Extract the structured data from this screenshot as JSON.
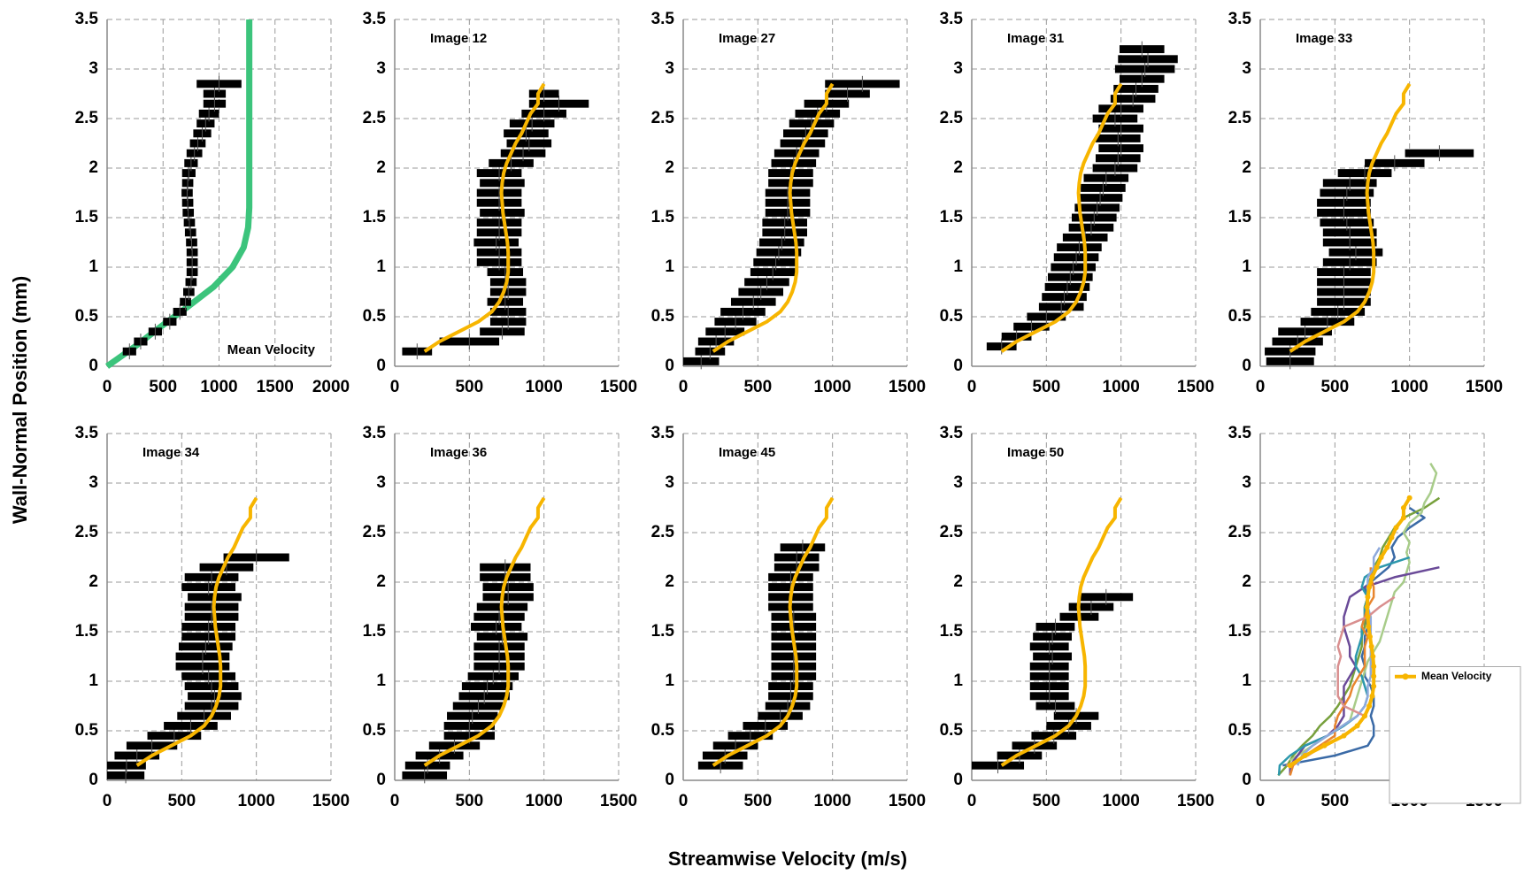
{
  "axis_titles": {
    "y": "Wall-Normal Position (mm)",
    "x": "Streamwise Velocity (m/s)"
  },
  "chart_data": [
    {
      "type": "errorbar",
      "title": "Mean Velocity",
      "xlim": [
        0,
        2000
      ],
      "xticks": [
        0,
        500,
        1000,
        1500,
        2000
      ],
      "ylim": [
        0,
        3.5
      ],
      "yticks": [
        0,
        0.5,
        1,
        1.5,
        2,
        2.5,
        3,
        3.5
      ],
      "grid": true,
      "bar_color": "#000000",
      "color": "#f7b500",
      "y": [
        0.15,
        0.25,
        0.35,
        0.45,
        0.55,
        0.65,
        0.75,
        0.85,
        0.95,
        1.05,
        1.15,
        1.25,
        1.35,
        1.45,
        1.55,
        1.65,
        1.75,
        1.85,
        1.95,
        2.05,
        2.15,
        2.25,
        2.35,
        2.45,
        2.55,
        2.65,
        2.75,
        2.85
      ],
      "x": [
        200,
        300,
        430,
        560,
        650,
        700,
        730,
        750,
        760,
        760,
        760,
        755,
        745,
        735,
        725,
        720,
        715,
        720,
        730,
        750,
        780,
        810,
        850,
        880,
        910,
        960,
        960,
        1000
      ],
      "xerr": [
        60,
        60,
        60,
        60,
        60,
        50,
        50,
        50,
        50,
        50,
        50,
        50,
        50,
        50,
        50,
        50,
        50,
        50,
        60,
        60,
        70,
        70,
        80,
        80,
        90,
        100,
        100,
        200
      ],
      "fit": {
        "color": "#3cc47c",
        "y": [
          0,
          0.2,
          0.4,
          0.6,
          0.8,
          1.0,
          1.2,
          1.4,
          1.6,
          3.5
        ],
        "x": [
          0,
          250,
          480,
          720,
          950,
          1120,
          1220,
          1260,
          1270,
          1270
        ]
      }
    },
    {
      "type": "errorbar",
      "title": "Image 12",
      "xlim": [
        0,
        1500
      ],
      "xticks": [
        0,
        500,
        1000,
        1500
      ],
      "ylim": [
        0,
        3.5
      ],
      "yticks": [
        0,
        0.5,
        1,
        1.5,
        2,
        2.5,
        3,
        3.5
      ],
      "grid": true,
      "bar_color": "#000000",
      "color": "#3a6aa6",
      "y": [
        0.15,
        0.25,
        0.35,
        0.45,
        0.55,
        0.65,
        0.75,
        0.85,
        0.95,
        1.05,
        1.15,
        1.25,
        1.35,
        1.45,
        1.55,
        1.65,
        1.75,
        1.85,
        1.95,
        2.05,
        2.15,
        2.25,
        2.35,
        2.45,
        2.55,
        2.65,
        2.75
      ],
      "x": [
        150,
        500,
        720,
        760,
        760,
        740,
        760,
        760,
        740,
        700,
        700,
        680,
        700,
        700,
        720,
        700,
        700,
        720,
        700,
        780,
        860,
        900,
        880,
        920,
        1000,
        1100,
        1000
      ],
      "xerr": [
        100,
        200,
        150,
        120,
        120,
        120,
        120,
        120,
        120,
        150,
        150,
        150,
        150,
        150,
        150,
        150,
        150,
        150,
        150,
        150,
        150,
        150,
        150,
        150,
        150,
        200,
        100
      ]
    },
    {
      "type": "errorbar",
      "title": "Image 27",
      "xlim": [
        0,
        1500
      ],
      "xticks": [
        0,
        500,
        1000,
        1500
      ],
      "ylim": [
        0,
        3.5
      ],
      "yticks": [
        0,
        0.5,
        1,
        1.5,
        2,
        2.5,
        3,
        3.5
      ],
      "grid": true,
      "bar_color": "#000000",
      "color": "#77a03c",
      "y": [
        0.05,
        0.15,
        0.25,
        0.35,
        0.45,
        0.55,
        0.65,
        0.75,
        0.85,
        0.95,
        1.05,
        1.15,
        1.25,
        1.35,
        1.45,
        1.55,
        1.65,
        1.75,
        1.85,
        1.95,
        2.05,
        2.15,
        2.25,
        2.35,
        2.45,
        2.55,
        2.65,
        2.75,
        2.85
      ],
      "x": [
        120,
        180,
        220,
        280,
        350,
        400,
        470,
        520,
        560,
        600,
        620,
        640,
        660,
        680,
        680,
        700,
        700,
        700,
        720,
        720,
        740,
        760,
        800,
        820,
        860,
        900,
        960,
        1100,
        1200
      ],
      "xerr": [
        120,
        100,
        120,
        130,
        140,
        150,
        150,
        150,
        150,
        150,
        150,
        150,
        150,
        150,
        150,
        150,
        150,
        150,
        150,
        150,
        150,
        150,
        150,
        150,
        150,
        150,
        150,
        150,
        250
      ]
    },
    {
      "type": "errorbar",
      "title": "Image 31",
      "xlim": [
        0,
        1500
      ],
      "xticks": [
        0,
        500,
        1000,
        1500
      ],
      "ylim": [
        0,
        3.5
      ],
      "yticks": [
        0,
        0.5,
        1,
        1.5,
        2,
        2.5,
        3,
        3.5
      ],
      "grid": true,
      "bar_color": "#000000",
      "color": "#a8cc8a",
      "y": [
        0.2,
        0.3,
        0.4,
        0.5,
        0.6,
        0.7,
        0.8,
        0.9,
        1.0,
        1.1,
        1.2,
        1.3,
        1.4,
        1.5,
        1.6,
        1.7,
        1.8,
        1.9,
        2.0,
        2.1,
        2.2,
        2.3,
        2.4,
        2.5,
        2.6,
        2.7,
        2.8,
        2.9,
        3.0,
        3.1,
        3.2
      ],
      "x": [
        200,
        300,
        400,
        500,
        600,
        620,
        640,
        660,
        680,
        700,
        720,
        760,
        800,
        820,
        840,
        860,
        880,
        900,
        960,
        980,
        1000,
        980,
        1000,
        960,
        1000,
        1080,
        1100,
        1140,
        1160,
        1180,
        1140
      ],
      "xerr": [
        100,
        100,
        120,
        130,
        150,
        150,
        150,
        150,
        150,
        150,
        150,
        150,
        150,
        150,
        150,
        150,
        150,
        150,
        150,
        150,
        150,
        150,
        150,
        150,
        150,
        150,
        150,
        150,
        200,
        200,
        150
      ]
    },
    {
      "type": "errorbar",
      "title": "Image 33",
      "xlim": [
        0,
        1500
      ],
      "xticks": [
        0,
        500,
        1000,
        1500
      ],
      "ylim": [
        0,
        3.5
      ],
      "yticks": [
        0,
        0.5,
        1,
        1.5,
        2,
        2.5,
        3,
        3.5
      ],
      "grid": true,
      "bar_color": "#000000",
      "color": "#6a4a98",
      "y": [
        0.05,
        0.15,
        0.25,
        0.35,
        0.45,
        0.55,
        0.65,
        0.75,
        0.85,
        0.95,
        1.05,
        1.15,
        1.25,
        1.35,
        1.45,
        1.55,
        1.65,
        1.75,
        1.85,
        1.95,
        2.05,
        2.15
      ],
      "x": [
        200,
        200,
        250,
        300,
        450,
        520,
        560,
        560,
        560,
        560,
        600,
        640,
        600,
        600,
        580,
        560,
        560,
        580,
        600,
        700,
        900,
        1200
      ],
      "xerr": [
        160,
        170,
        170,
        180,
        180,
        180,
        180,
        180,
        180,
        180,
        180,
        180,
        180,
        180,
        180,
        180,
        180,
        180,
        180,
        180,
        200,
        230
      ]
    },
    {
      "type": "errorbar",
      "title": "Image 34",
      "xlim": [
        0,
        1500
      ],
      "xticks": [
        0,
        500,
        1000,
        1500
      ],
      "ylim": [
        0,
        3.5
      ],
      "yticks": [
        0,
        0.5,
        1,
        1.5,
        2,
        2.5,
        3,
        3.5
      ],
      "grid": true,
      "bar_color": "#000000",
      "color": "#2c98ad",
      "y": [
        0.05,
        0.15,
        0.25,
        0.35,
        0.45,
        0.55,
        0.65,
        0.75,
        0.85,
        0.95,
        1.05,
        1.15,
        1.25,
        1.35,
        1.45,
        1.55,
        1.65,
        1.75,
        1.85,
        1.95,
        2.05,
        2.15,
        2.25
      ],
      "x": [
        125,
        130,
        200,
        300,
        450,
        560,
        650,
        700,
        720,
        700,
        680,
        640,
        640,
        660,
        680,
        680,
        700,
        700,
        720,
        680,
        700,
        800,
        1000
      ],
      "xerr": [
        125,
        130,
        150,
        170,
        180,
        180,
        180,
        180,
        180,
        180,
        180,
        180,
        180,
        180,
        180,
        180,
        180,
        180,
        180,
        180,
        180,
        180,
        220
      ]
    },
    {
      "type": "errorbar",
      "title": "Image 36",
      "xlim": [
        0,
        1500
      ],
      "xticks": [
        0,
        500,
        1000,
        1500
      ],
      "ylim": [
        0,
        3.5
      ],
      "yticks": [
        0,
        0.5,
        1,
        1.5,
        2,
        2.5,
        3,
        3.5
      ],
      "grid": true,
      "bar_color": "#000000",
      "color": "#e8852e",
      "y": [
        0.05,
        0.15,
        0.25,
        0.35,
        0.45,
        0.55,
        0.65,
        0.75,
        0.85,
        0.95,
        1.05,
        1.15,
        1.25,
        1.35,
        1.45,
        1.55,
        1.65,
        1.75,
        1.85,
        1.95,
        2.05,
        2.15
      ],
      "x": [
        200,
        220,
        300,
        400,
        500,
        500,
        520,
        560,
        600,
        620,
        660,
        700,
        700,
        700,
        720,
        680,
        700,
        720,
        760,
        760,
        740,
        740
      ],
      "xerr": [
        150,
        150,
        160,
        170,
        170,
        170,
        170,
        170,
        170,
        170,
        170,
        170,
        170,
        170,
        170,
        170,
        170,
        170,
        170,
        170,
        170,
        170
      ]
    },
    {
      "type": "errorbar",
      "title": "Image 45",
      "xlim": [
        0,
        1500
      ],
      "xticks": [
        0,
        500,
        1000,
        1500
      ],
      "ylim": [
        0,
        3.5
      ],
      "yticks": [
        0,
        0.5,
        1,
        1.5,
        2,
        2.5,
        3,
        3.5
      ],
      "grid": true,
      "bar_color": "#000000",
      "color": "#8ea9db",
      "y": [
        0.15,
        0.25,
        0.35,
        0.45,
        0.55,
        0.65,
        0.75,
        0.85,
        0.95,
        1.05,
        1.15,
        1.25,
        1.35,
        1.45,
        1.55,
        1.65,
        1.75,
        1.85,
        1.95,
        2.05,
        2.15,
        2.25,
        2.35
      ],
      "x": [
        250,
        280,
        350,
        450,
        550,
        650,
        700,
        720,
        720,
        740,
        740,
        740,
        740,
        740,
        740,
        740,
        720,
        720,
        720,
        720,
        760,
        760,
        800
      ],
      "xerr": [
        150,
        150,
        150,
        150,
        150,
        150,
        150,
        150,
        150,
        150,
        150,
        150,
        150,
        150,
        150,
        150,
        150,
        150,
        150,
        150,
        150,
        150,
        150
      ]
    },
    {
      "type": "errorbar",
      "title": "Image 50",
      "xlim": [
        0,
        1500
      ],
      "xticks": [
        0,
        500,
        1000,
        1500
      ],
      "ylim": [
        0,
        3.5
      ],
      "yticks": [
        0,
        0.5,
        1,
        1.5,
        2,
        2.5,
        3,
        3.5
      ],
      "grid": true,
      "bar_color": "#000000",
      "color": "#d98f8f",
      "y": [
        0.15,
        0.25,
        0.35,
        0.45,
        0.55,
        0.65,
        0.75,
        0.85,
        0.95,
        1.05,
        1.15,
        1.25,
        1.35,
        1.45,
        1.55,
        1.65,
        1.75,
        1.85
      ],
      "x": [
        175,
        320,
        420,
        550,
        650,
        700,
        560,
        520,
        520,
        520,
        520,
        540,
        520,
        540,
        560,
        720,
        800,
        900
      ],
      "xerr": [
        175,
        150,
        150,
        150,
        150,
        150,
        130,
        130,
        130,
        130,
        130,
        130,
        130,
        130,
        130,
        130,
        150,
        180
      ]
    },
    {
      "type": "line",
      "xlim": [
        0,
        1500
      ],
      "xticks": [
        0,
        500,
        1000,
        1500
      ],
      "ylim": [
        0,
        3.5
      ],
      "yticks": [
        0,
        0.5,
        1,
        1.5,
        2,
        2.5,
        3,
        3.5
      ],
      "grid": true,
      "legend": "lower right"
    }
  ]
}
